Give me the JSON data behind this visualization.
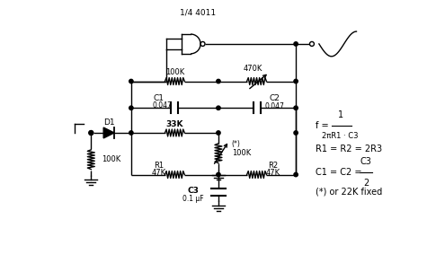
{
  "bg_color": "#ffffff",
  "line_color": "#000000",
  "lw": 1.0,
  "gate_label": "1/4 4011",
  "r100k_label": "100K",
  "r470k_label": "470K",
  "c1_label": "C1",
  "c1_val": "0.047",
  "c2_label": "C2",
  "c2_val": "0.047",
  "r33k_label": "33K",
  "var_label1": "(*)",
  "var_label2": "100K",
  "r1_label": "R1",
  "r1_val": "47K",
  "r2_label": "R2",
  "r2_val": "47K",
  "c3_label": "C3",
  "c3_val": "0.1 μF",
  "d1_label": "D1",
  "left_r_label": "100K",
  "f1_lhs": "f = ",
  "f1_num": "1",
  "f1_den": "2πR1 · C3",
  "f2": "R1 = R2 = 2R3",
  "f3_lhs": "C1 = C2 = ",
  "f3_num": "C3",
  "f3_den": "2",
  "f4": "(*) or 22K fixed"
}
